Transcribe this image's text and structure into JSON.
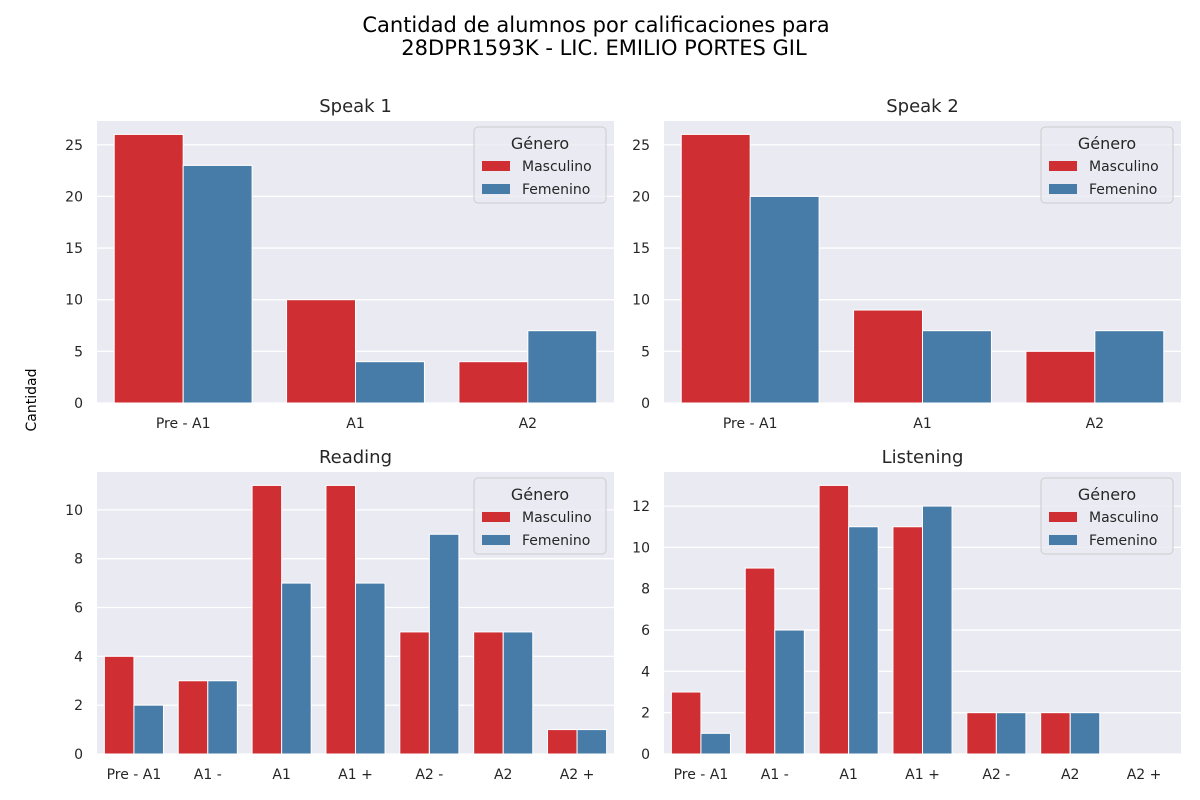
{
  "figure": {
    "title_line1": "Cantidad de alumnos por calificaciones para",
    "title_line2": "28DPR1593K - LIC. EMILIO PORTES GIL",
    "ylabel": "Cantidad"
  },
  "colors": {
    "Masculino": "#cf2f33",
    "Femenino": "#477ca8",
    "plot_bg": "#eaeaf2",
    "grid": "#ffffff"
  },
  "legend": {
    "title": "Género",
    "placement": "top-right"
  },
  "chart_data": [
    {
      "type": "bar",
      "title": "Speak 1",
      "categories": [
        "Pre - A1",
        "A1",
        "A2"
      ],
      "series": [
        {
          "name": "Masculino",
          "values": [
            26,
            10,
            4
          ]
        },
        {
          "name": "Femenino",
          "values": [
            23,
            4,
            7
          ]
        }
      ],
      "ylim": [
        0,
        27.3
      ],
      "yticks": [
        0,
        5,
        10,
        15,
        20,
        25
      ],
      "grid": true
    },
    {
      "type": "bar",
      "title": "Speak 2",
      "categories": [
        "Pre - A1",
        "A1",
        "A2"
      ],
      "series": [
        {
          "name": "Masculino",
          "values": [
            26,
            9,
            5
          ]
        },
        {
          "name": "Femenino",
          "values": [
            20,
            7,
            7
          ]
        }
      ],
      "ylim": [
        0,
        27.3
      ],
      "yticks": [
        0,
        5,
        10,
        15,
        20,
        25
      ],
      "grid": true
    },
    {
      "type": "bar",
      "title": "Reading",
      "categories": [
        "Pre - A1",
        "A1 -",
        "A1",
        "A1 +",
        "A2 -",
        "A2",
        "A2 +"
      ],
      "series": [
        {
          "name": "Masculino",
          "values": [
            4,
            3,
            11,
            11,
            5,
            5,
            1
          ]
        },
        {
          "name": "Femenino",
          "values": [
            2,
            3,
            7,
            7,
            9,
            5,
            1
          ]
        }
      ],
      "ylim": [
        0,
        11.55
      ],
      "yticks": [
        0,
        2,
        4,
        6,
        8,
        10
      ],
      "grid": true
    },
    {
      "type": "bar",
      "title": "Listening",
      "categories": [
        "Pre - A1",
        "A1 -",
        "A1",
        "A1 +",
        "A2 -",
        "A2",
        "A2 +"
      ],
      "series": [
        {
          "name": "Masculino",
          "values": [
            3,
            9,
            13,
            11,
            2,
            2,
            0
          ]
        },
        {
          "name": "Femenino",
          "values": [
            1,
            6,
            11,
            12,
            2,
            2,
            0
          ]
        }
      ],
      "ylim": [
        0,
        13.65
      ],
      "yticks": [
        0,
        2,
        4,
        6,
        8,
        10,
        12
      ],
      "grid": true
    }
  ]
}
